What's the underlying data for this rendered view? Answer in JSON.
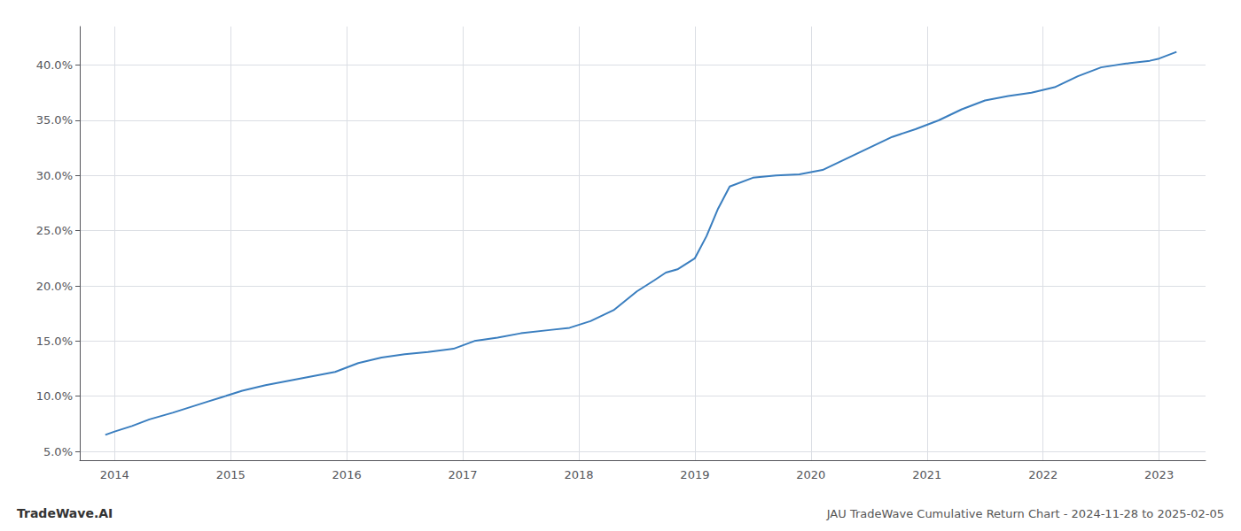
{
  "chart_data": {
    "type": "line",
    "title": "JAU TradeWave Cumulative Return Chart - 2024-11-28 to 2025-02-05",
    "annotations": [
      "TradeWave.AI"
    ],
    "color": "#3a7ebf",
    "x": [
      2013.92,
      2014.0,
      2014.15,
      2014.3,
      2014.5,
      2014.65,
      2014.8,
      2014.92,
      2015.1,
      2015.3,
      2015.5,
      2015.7,
      2015.9,
      2016.1,
      2016.3,
      2016.5,
      2016.7,
      2016.92,
      2017.1,
      2017.3,
      2017.5,
      2017.75,
      2017.92,
      2018.1,
      2018.3,
      2018.5,
      2018.65,
      2018.75,
      2018.85,
      2019.0,
      2019.1,
      2019.2,
      2019.3,
      2019.5,
      2019.7,
      2019.9,
      2020.1,
      2020.3,
      2020.5,
      2020.7,
      2020.9,
      2021.1,
      2021.3,
      2021.5,
      2021.7,
      2021.9,
      2022.1,
      2022.3,
      2022.5,
      2022.75,
      2022.92,
      2023.0,
      2023.15
    ],
    "values": [
      6.5,
      6.8,
      7.3,
      7.9,
      8.5,
      9.0,
      9.5,
      9.9,
      10.5,
      11.0,
      11.4,
      11.8,
      12.2,
      13.0,
      13.5,
      13.8,
      14.0,
      14.3,
      15.0,
      15.3,
      15.7,
      16.0,
      16.2,
      16.8,
      17.8,
      19.5,
      20.5,
      21.2,
      21.5,
      22.5,
      24.5,
      27.0,
      29.0,
      29.8,
      30.0,
      30.1,
      30.5,
      31.5,
      32.5,
      33.5,
      34.2,
      35.0,
      36.0,
      36.8,
      37.2,
      37.5,
      38.0,
      39.0,
      39.8,
      40.2,
      40.4,
      40.6,
      41.2
    ],
    "xlim": [
      2013.7,
      2023.4
    ],
    "xticks": [
      2014,
      2015,
      2016,
      2017,
      2018,
      2019,
      2020,
      2021,
      2022,
      2023
    ],
    "ylim": [
      4.2,
      43.5
    ],
    "yticks": [
      {
        "value": 5.0,
        "label": "5.0%"
      },
      {
        "value": 10.0,
        "label": "10.0%"
      },
      {
        "value": 15.0,
        "label": "15.0%"
      },
      {
        "value": 20.0,
        "label": "20.0%"
      },
      {
        "value": 25.0,
        "label": "25.0%"
      },
      {
        "value": 30.0,
        "label": "30.0%"
      },
      {
        "value": 35.0,
        "label": "35.0%"
      },
      {
        "value": 40.0,
        "label": "40.0%"
      }
    ],
    "grid": true
  }
}
